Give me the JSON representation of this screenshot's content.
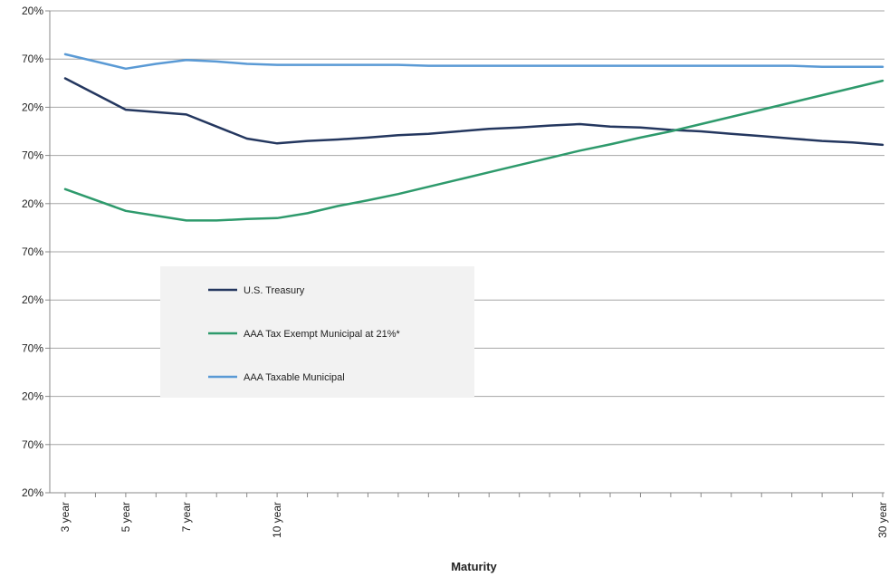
{
  "chart_data": {
    "type": "line",
    "xlabel": "Maturity",
    "ylabel": "",
    "y_tick_labels": [
      "20%",
      "70%",
      "20%",
      "70%",
      "20%",
      "70%",
      "20%",
      "70%",
      "20%",
      "70%",
      "20%"
    ],
    "ylim": [
      0,
      10
    ],
    "x_tick_labels": [
      {
        "x": 3,
        "label": "3 year"
      },
      {
        "x": 5,
        "label": "5 year"
      },
      {
        "x": 7,
        "label": "7 year"
      },
      {
        "x": 10,
        "label": "10 year"
      },
      {
        "x": 30,
        "label": "30 year"
      }
    ],
    "xlim": [
      3,
      30
    ],
    "grid": "horizontal",
    "legend_position": "center-left",
    "series": [
      {
        "name": "U.S. Treasury",
        "color": "#24375f",
        "points": [
          [
            3,
            8.6
          ],
          [
            5,
            7.95
          ],
          [
            6,
            7.9
          ],
          [
            7,
            7.85
          ],
          [
            8,
            7.6
          ],
          [
            9,
            7.35
          ],
          [
            10,
            7.25
          ],
          [
            11,
            7.3
          ],
          [
            12,
            7.33
          ],
          [
            13,
            7.37
          ],
          [
            14,
            7.42
          ],
          [
            15,
            7.45
          ],
          [
            16,
            7.5
          ],
          [
            17,
            7.55
          ],
          [
            18,
            7.58
          ],
          [
            19,
            7.62
          ],
          [
            20,
            7.65
          ],
          [
            21,
            7.6
          ],
          [
            22,
            7.58
          ],
          [
            23,
            7.53
          ],
          [
            24,
            7.5
          ],
          [
            25,
            7.45
          ],
          [
            26,
            7.4
          ],
          [
            27,
            7.35
          ],
          [
            28,
            7.3
          ],
          [
            29,
            7.27
          ],
          [
            30,
            7.22
          ]
        ]
      },
      {
        "name": "AAA Tax Exempt Municipal at 21%*",
        "color": "#2e9a6c",
        "points": [
          [
            3,
            6.3
          ],
          [
            5,
            5.85
          ],
          [
            6,
            5.75
          ],
          [
            7,
            5.65
          ],
          [
            8,
            5.65
          ],
          [
            9,
            5.68
          ],
          [
            10,
            5.7
          ],
          [
            11,
            5.8
          ],
          [
            12,
            5.95
          ],
          [
            13,
            6.07
          ],
          [
            14,
            6.2
          ],
          [
            15,
            6.35
          ],
          [
            16,
            6.5
          ],
          [
            17,
            6.65
          ],
          [
            18,
            6.8
          ],
          [
            19,
            6.95
          ],
          [
            20,
            7.1
          ],
          [
            21,
            7.23
          ],
          [
            22,
            7.37
          ],
          [
            23,
            7.5
          ],
          [
            24,
            7.65
          ],
          [
            25,
            7.8
          ],
          [
            26,
            7.95
          ],
          [
            27,
            8.1
          ],
          [
            28,
            8.25
          ],
          [
            29,
            8.4
          ],
          [
            30,
            8.55
          ]
        ]
      },
      {
        "name": "AAA Taxable Municipal",
        "color": "#5a9ad5",
        "points": [
          [
            3,
            9.1
          ],
          [
            5,
            8.8
          ],
          [
            6,
            8.9
          ],
          [
            7,
            8.98
          ],
          [
            8,
            8.95
          ],
          [
            9,
            8.9
          ],
          [
            10,
            8.88
          ],
          [
            12,
            8.88
          ],
          [
            14,
            8.88
          ],
          [
            15,
            8.86
          ],
          [
            20,
            8.86
          ],
          [
            25,
            8.86
          ],
          [
            27,
            8.86
          ],
          [
            28,
            8.84
          ],
          [
            30,
            8.84
          ]
        ]
      }
    ]
  }
}
